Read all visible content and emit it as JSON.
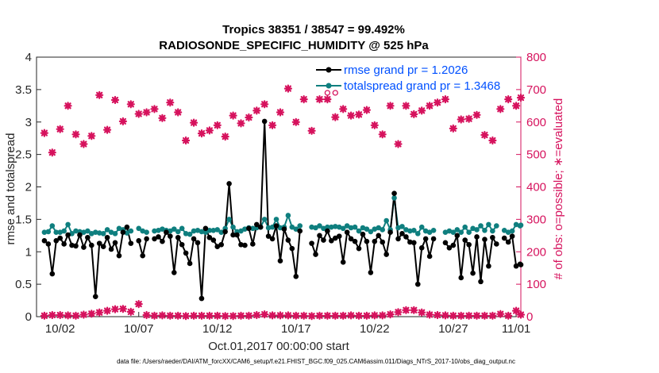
{
  "chart_data": {
    "type": "line",
    "title": "Tropics 38351 / 38547 = 99.492%",
    "subtitle": "RADIOSONDE_SPECIFIC_HUMIDITY @ 525 hPa",
    "xlabel": "Oct.01,2017 00:00:00 start",
    "ylabel": "rmse and totalspread",
    "y2label": "# of obs: o=possible; ∗=evaluated",
    "xlim": [
      0.5,
      31.3
    ],
    "ylim": [
      0,
      4
    ],
    "y2lim": [
      0,
      800
    ],
    "x_ticks": [
      {
        "x": 2,
        "label": "10/02"
      },
      {
        "x": 7,
        "label": "10/07"
      },
      {
        "x": 12,
        "label": "10/12"
      },
      {
        "x": 17,
        "label": "10/17"
      },
      {
        "x": 22,
        "label": "10/22"
      },
      {
        "x": 27,
        "label": "10/27"
      },
      {
        "x": 31,
        "label": "11/01"
      }
    ],
    "y_ticks": [
      {
        "v": 0,
        "label": "0"
      },
      {
        "v": 0.5,
        "label": "0.5"
      },
      {
        "v": 1,
        "label": "1"
      },
      {
        "v": 1.5,
        "label": "1.5"
      },
      {
        "v": 2,
        "label": "2"
      },
      {
        "v": 2.5,
        "label": "2.5"
      },
      {
        "v": 3,
        "label": "3"
      },
      {
        "v": 3.5,
        "label": "3.5"
      },
      {
        "v": 4,
        "label": "4"
      }
    ],
    "y2_ticks": [
      {
        "v": 0,
        "label": "0"
      },
      {
        "v": 100,
        "label": "100"
      },
      {
        "v": 200,
        "label": "200"
      },
      {
        "v": 300,
        "label": "300"
      },
      {
        "v": 400,
        "label": "400"
      },
      {
        "v": 500,
        "label": "500"
      },
      {
        "v": 600,
        "label": "600"
      },
      {
        "v": 700,
        "label": "700"
      },
      {
        "v": 800,
        "label": "800"
      }
    ],
    "legend": {
      "position": "top-right",
      "entries": [
        "rmse grand pr = 1.2026",
        "totalspread grand pr = 1.3468"
      ]
    },
    "series": [
      {
        "name": "rmse grand pr = 1.2026",
        "color": "#000000",
        "axis": "left",
        "segments": [
          {
            "x": [
              1.0,
              1.25,
              1.5,
              1.75,
              2.0,
              2.25,
              2.5,
              2.75,
              3.0,
              3.25,
              3.5,
              3.75,
              4.0,
              4.25,
              4.5,
              4.75,
              5.0,
              5.25,
              5.5,
              5.75,
              6.0,
              6.25,
              6.5
            ],
            "y": [
              1.17,
              1.12,
              0.66,
              1.17,
              1.21,
              1.12,
              1.26,
              1.1,
              1.09,
              1.26,
              1.07,
              1.22,
              1.1,
              0.31,
              1.13,
              1.08,
              1.22,
              1.04,
              1.14,
              0.94,
              1.3,
              1.38,
              1.13
            ]
          },
          {
            "x": [
              7.0,
              7.25,
              7.5
            ],
            "y": [
              1.17,
              0.94,
              1.2
            ]
          },
          {
            "x": [
              8.0,
              8.25,
              8.5,
              8.75,
              9.0,
              9.25,
              9.5,
              9.75,
              10.0,
              10.25,
              10.5,
              10.75,
              11.0,
              11.25,
              11.5,
              11.75,
              12.0,
              12.25,
              12.5,
              12.75,
              13.0,
              13.25,
              13.5,
              13.75
            ],
            "y": [
              1.2,
              1.23,
              1.16,
              1.3,
              1.24,
              0.68,
              1.22,
              1.11,
              0.98,
              0.82,
              1.2,
              1.14,
              0.28,
              1.36,
              1.22,
              1.18,
              1.08,
              1.11,
              1.31,
              2.05,
              1.26,
              1.26,
              1.11,
              1.1
            ]
          },
          {
            "x": [
              14.0,
              14.25,
              14.5,
              14.75,
              15.0,
              15.25,
              15.5,
              15.75,
              16.0,
              16.25,
              16.5,
              16.75,
              17.0,
              17.25
            ],
            "y": [
              1.36,
              1.12,
              1.42,
              1.38,
              3.01,
              1.24,
              1.2,
              1.4,
              0.86,
              1.35,
              1.18,
              1.05,
              0.62,
              1.32
            ]
          },
          {
            "x": [
              18.0,
              18.25,
              18.5,
              18.75,
              19.0,
              19.25,
              19.5,
              19.75,
              20.0,
              20.25,
              20.5,
              20.75,
              21.0,
              21.25,
              21.5,
              21.75,
              22.0,
              22.25,
              22.5,
              22.75,
              23.0,
              23.25,
              23.5,
              23.75,
              24.0,
              24.25,
              24.5,
              24.75,
              25.0,
              25.25,
              25.5,
              25.75
            ],
            "y": [
              1.13,
              0.96,
              1.25,
              1.18,
              1.32,
              1.17,
              1.21,
              1.24,
              0.84,
              1.3,
              1.2,
              1.16,
              1.05,
              1.27,
              1.16,
              0.68,
              1.16,
              1.25,
              1.15,
              0.96,
              1.3,
              1.9,
              1.2,
              1.28,
              1.23,
              1.15,
              1.14,
              0.5,
              1.06,
              1.2,
              0.93,
              1.2
            ]
          },
          {
            "x": [
              26.5,
              26.75,
              27.0,
              27.25,
              27.5,
              27.75,
              28.0,
              28.25,
              28.5,
              28.75,
              29.0,
              29.25,
              29.5,
              29.75
            ],
            "y": [
              1.14,
              1.06,
              1.1,
              1.25,
              0.6,
              1.18,
              1.11,
              0.67,
              1.23,
              0.54,
              1.19,
              0.78,
              1.22,
              1.12
            ]
          },
          {
            "x": [
              30.25,
              30.5,
              30.75,
              31.0
            ],
            "y": [
              1.21,
              1.15,
              1.24,
              0.78
            ]
          },
          {
            "x": [
              31.25,
              31.3
            ],
            "y": [
              0.81,
              0.8
            ]
          }
        ]
      },
      {
        "name": "totalspread grand pr = 1.3468",
        "color": "#0f7f7f",
        "axis": "left",
        "segments": [
          {
            "x": [
              1.0,
              1.25,
              1.5,
              1.75,
              2.0,
              2.25,
              2.5,
              2.75,
              3.0,
              3.25,
              3.5,
              3.75,
              4.0,
              4.25,
              4.5,
              4.75,
              5.0,
              5.25,
              5.5,
              5.75,
              6.0,
              6.25,
              6.5
            ],
            "y": [
              1.3,
              1.31,
              1.4,
              1.3,
              1.3,
              1.32,
              1.42,
              1.28,
              1.32,
              1.31,
              1.3,
              1.32,
              1.28,
              1.3,
              1.29,
              1.28,
              1.34,
              1.3,
              1.28,
              1.36,
              1.34,
              1.29,
              1.32
            ]
          },
          {
            "x": [
              7.0,
              7.25,
              7.5
            ],
            "y": [
              1.36,
              1.32,
              1.3
            ]
          },
          {
            "x": [
              8.0,
              8.25,
              8.5,
              8.75,
              9.0,
              9.25,
              9.5,
              9.75,
              10.0,
              10.25,
              10.5,
              10.75,
              11.0,
              11.25,
              11.5,
              11.75,
              12.0,
              12.25,
              12.5,
              12.75,
              13.0,
              13.25,
              13.5,
              13.75
            ],
            "y": [
              1.32,
              1.33,
              1.35,
              1.33,
              1.32,
              1.35,
              1.31,
              1.36,
              1.28,
              1.27,
              1.32,
              1.33,
              1.31,
              1.3,
              1.33,
              1.33,
              1.34,
              1.3,
              1.36,
              1.5,
              1.38,
              1.31,
              1.32,
              1.35
            ]
          },
          {
            "x": [
              14.0,
              14.25,
              14.5,
              14.75,
              15.0,
              15.25,
              15.5,
              15.75,
              16.0,
              16.25,
              16.5,
              16.75,
              17.0,
              17.25
            ],
            "y": [
              1.37,
              1.36,
              1.37,
              1.38,
              1.5,
              1.37,
              1.38,
              1.5,
              1.37,
              1.38,
              1.56,
              1.38,
              1.35,
              1.4
            ]
          },
          {
            "x": [
              18.0,
              18.25,
              18.5,
              18.75,
              19.0,
              19.25,
              19.5,
              19.75,
              20.0,
              20.25,
              20.5,
              20.75,
              21.0,
              21.25,
              21.5,
              21.75,
              22.0,
              22.25,
              22.5,
              22.75,
              23.0,
              23.25,
              23.5,
              23.75,
              24.0,
              24.25,
              24.5,
              24.75,
              25.0,
              25.25,
              25.5,
              25.75
            ],
            "y": [
              1.38,
              1.37,
              1.4,
              1.36,
              1.38,
              1.38,
              1.39,
              1.38,
              1.36,
              1.4,
              1.37,
              1.38,
              1.32,
              1.37,
              1.35,
              1.31,
              1.35,
              1.37,
              1.34,
              1.48,
              1.34,
              1.83,
              1.37,
              1.39,
              1.34,
              1.32,
              1.33,
              1.28,
              1.38,
              1.32,
              1.3,
              1.33
            ]
          },
          {
            "x": [
              26.5,
              26.75,
              27.0,
              27.25,
              27.5,
              27.75,
              28.0,
              28.25,
              28.5,
              28.75,
              29.0,
              29.25,
              29.5,
              29.75
            ],
            "y": [
              1.3,
              1.32,
              1.3,
              1.34,
              1.3,
              1.38,
              1.3,
              1.36,
              1.34,
              1.4,
              1.33,
              1.42,
              1.32,
              1.4
            ]
          },
          {
            "x": [
              30.25,
              30.5,
              30.75,
              31.0
            ],
            "y": [
              1.33,
              1.3,
              1.32,
              1.42
            ]
          },
          {
            "x": [
              31.25,
              31.3
            ],
            "y": [
              1.4,
              1.41
            ]
          }
        ]
      },
      {
        "name": "obs evaluated",
        "color": "#d6125d",
        "axis": "right",
        "points": [
          {
            "x": 1.0,
            "upper": 566,
            "lower": 3
          },
          {
            "x": 1.5,
            "upper": 506,
            "lower": 5
          },
          {
            "x": 2.0,
            "upper": 578,
            "lower": 5
          },
          {
            "x": 2.5,
            "upper": 650,
            "lower": 4
          },
          {
            "x": 3.0,
            "upper": 562,
            "lower": 3
          },
          {
            "x": 3.5,
            "upper": 532,
            "lower": 6
          },
          {
            "x": 4.0,
            "upper": 557,
            "lower": 9
          },
          {
            "x": 4.5,
            "upper": 683,
            "lower": 13
          },
          {
            "x": 5.0,
            "upper": 576,
            "lower": 18
          },
          {
            "x": 5.5,
            "upper": 668,
            "lower": 23
          },
          {
            "x": 6.0,
            "upper": 602,
            "lower": 24
          },
          {
            "x": 6.5,
            "upper": 655,
            "lower": 15
          },
          {
            "x": 7.0,
            "upper": 625,
            "lower": 39
          },
          {
            "x": 7.5,
            "upper": 630,
            "lower": 5
          },
          {
            "x": 8.0,
            "upper": 640,
            "lower": 3
          },
          {
            "x": 8.5,
            "upper": 612,
            "lower": 4
          },
          {
            "x": 9.0,
            "upper": 660,
            "lower": 3
          },
          {
            "x": 9.5,
            "upper": 630,
            "lower": 3
          },
          {
            "x": 10.0,
            "upper": 543,
            "lower": 2
          },
          {
            "x": 10.5,
            "upper": 598,
            "lower": 3
          },
          {
            "x": 11.0,
            "upper": 565,
            "lower": 3
          },
          {
            "x": 11.5,
            "upper": 574,
            "lower": 3
          },
          {
            "x": 12.0,
            "upper": 590,
            "lower": 3
          },
          {
            "x": 12.5,
            "upper": 555,
            "lower": 2
          },
          {
            "x": 13.0,
            "upper": 620,
            "lower": 2
          },
          {
            "x": 13.5,
            "upper": 596,
            "lower": 3
          },
          {
            "x": 14.0,
            "upper": 614,
            "lower": 3
          },
          {
            "x": 14.5,
            "upper": 635,
            "lower": 5
          },
          {
            "x": 15.0,
            "upper": 655,
            "lower": 7
          },
          {
            "x": 15.5,
            "upper": 590,
            "lower": 4
          },
          {
            "x": 16.0,
            "upper": 630,
            "lower": 4
          },
          {
            "x": 16.5,
            "upper": 703,
            "lower": 4
          },
          {
            "x": 17.0,
            "upper": 600,
            "lower": 3
          },
          {
            "x": 17.5,
            "upper": 670,
            "lower": 3
          },
          {
            "x": 18.0,
            "upper": 573,
            "lower": 2
          },
          {
            "x": 18.5,
            "upper": 670,
            "lower": 3
          },
          {
            "x": 19.0,
            "upper": 670,
            "lower": 3
          },
          {
            "x": 19.5,
            "upper": 615,
            "lower": 3
          },
          {
            "x": 20.0,
            "upper": 640,
            "lower": 3
          },
          {
            "x": 20.5,
            "upper": 620,
            "lower": 4
          },
          {
            "x": 21.0,
            "upper": 623,
            "lower": 3
          },
          {
            "x": 21.5,
            "upper": 637,
            "lower": 3
          },
          {
            "x": 22.0,
            "upper": 590,
            "lower": 4
          },
          {
            "x": 22.5,
            "upper": 562,
            "lower": 4
          },
          {
            "x": 23.0,
            "upper": 650,
            "lower": 7
          },
          {
            "x": 23.5,
            "upper": 532,
            "lower": 14
          },
          {
            "x": 24.0,
            "upper": 650,
            "lower": 20
          },
          {
            "x": 24.5,
            "upper": 624,
            "lower": 20
          },
          {
            "x": 25.0,
            "upper": 635,
            "lower": 13
          },
          {
            "x": 25.5,
            "upper": 650,
            "lower": 6
          },
          {
            "x": 26.0,
            "upper": 660,
            "lower": 5
          },
          {
            "x": 26.5,
            "upper": 670,
            "lower": 4
          },
          {
            "x": 27.0,
            "upper": 580,
            "lower": 3
          },
          {
            "x": 27.5,
            "upper": 608,
            "lower": 3
          },
          {
            "x": 28.0,
            "upper": 610,
            "lower": 3
          },
          {
            "x": 28.5,
            "upper": 622,
            "lower": 3
          },
          {
            "x": 29.0,
            "upper": 560,
            "lower": 3
          },
          {
            "x": 29.5,
            "upper": 543,
            "lower": 3
          },
          {
            "x": 30.0,
            "upper": 640,
            "lower": 8
          },
          {
            "x": 30.5,
            "upper": 670,
            "lower": 3
          },
          {
            "x": 31.0,
            "upper": 650,
            "lower": 18
          },
          {
            "x": 31.3,
            "upper": 675,
            "lower": 6
          }
        ]
      },
      {
        "name": "obs possible",
        "color": "#d6125d",
        "axis": "right",
        "marker": "circle",
        "points": [
          {
            "x": 19.0,
            "y": 690
          },
          {
            "x": 19.5,
            "y": 690
          }
        ]
      }
    ],
    "footer": "data file: /Users/raeder/DAI/ATM_forcXX/CAM6_setup/f.e21.FHIST_BGC.f09_025.CAM6assim.011/Diags_NTrS_2017-10/obs_diag_output.nc"
  }
}
